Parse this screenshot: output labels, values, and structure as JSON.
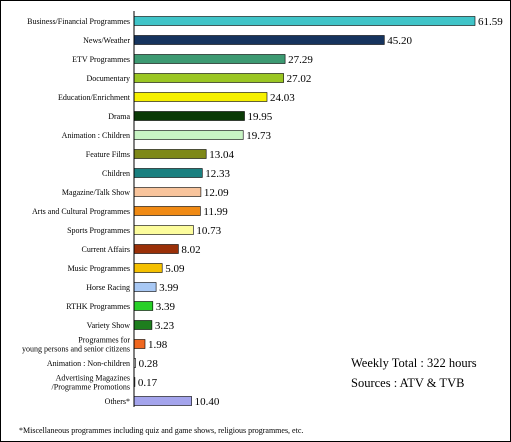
{
  "chart_data": {
    "type": "bar",
    "orientation": "horizontal",
    "categories": [
      [
        "Business/Financial Programmes"
      ],
      [
        "News/Weather"
      ],
      [
        "ETV Programmes"
      ],
      [
        "Documentary"
      ],
      [
        "Education/Enrichment"
      ],
      [
        "Drama"
      ],
      [
        "Animation : Children"
      ],
      [
        "Feature Films"
      ],
      [
        "Children"
      ],
      [
        "Magazine/Talk Show"
      ],
      [
        "Arts and Cultural Programmes"
      ],
      [
        "Sports Programmes"
      ],
      [
        "Current Affairs"
      ],
      [
        "Music Programmes"
      ],
      [
        "Horse Racing"
      ],
      [
        "RTHK Programmes"
      ],
      [
        "Variety Show"
      ],
      [
        "Programmes for",
        "young persons and senior citizens"
      ],
      [
        "Animation : Non-children"
      ],
      [
        "Advertising Magazines",
        "/Programme Promotions"
      ],
      [
        "Others*"
      ]
    ],
    "values": [
      61.59,
      45.2,
      27.29,
      27.02,
      24.03,
      19.95,
      19.73,
      13.04,
      12.33,
      12.09,
      11.99,
      10.73,
      8.02,
      5.09,
      3.99,
      3.39,
      3.23,
      1.98,
      0.28,
      0.17,
      10.4
    ],
    "value_labels": [
      "61.59",
      "45.20",
      "27.29",
      "27.02",
      "24.03",
      "19.95",
      "19.73",
      "13.04",
      "12.33",
      "12.09",
      "11.99",
      "10.73",
      "8.02",
      "5.09",
      "3.99",
      "3.39",
      "3.23",
      "1.98",
      "0.28",
      "0.17",
      "10.40"
    ],
    "colors": [
      "#40c4c8",
      "#16345e",
      "#3d9a72",
      "#9ac622",
      "#f6f000",
      "#0a3a06",
      "#c8f4c4",
      "#7e8818",
      "#1a8080",
      "#f8c49c",
      "#f08a14",
      "#fcfc9c",
      "#9a3008",
      "#f4c000",
      "#a8c8f4",
      "#28d028",
      "#1e7e1e",
      "#f06820",
      "#ffffff",
      "#ffffff",
      "#a4a4ec"
    ],
    "xlim": [
      0,
      62
    ],
    "grid": false,
    "legend": "none"
  },
  "annotations": {
    "total": "Weekly Total : 322 hours",
    "sources": "Sources : ATV & TVB"
  },
  "footnote": "*Miscellaneous programmes including quiz and game shows, religious programmes, etc."
}
